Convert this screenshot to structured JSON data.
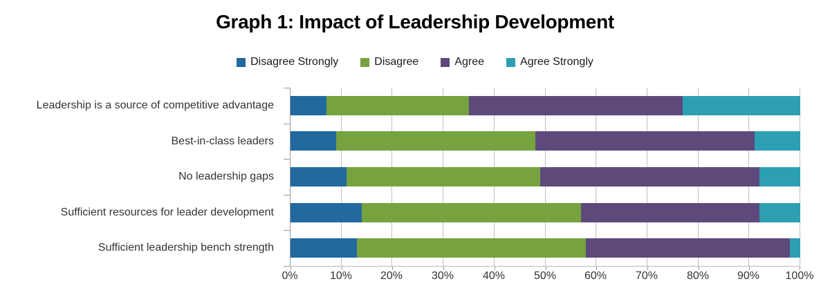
{
  "chart_data": {
    "type": "bar",
    "orientation": "horizontal-stacked",
    "title": "Graph 1: Impact of Leadership Development",
    "categories": [
      "Leadership is a source of competitive advantage",
      "Best-in-class leaders",
      "No leadership gaps",
      "Sufficient resources for leader development",
      "Sufficient leadership bench strength"
    ],
    "series": [
      {
        "name": "Disagree Strongly",
        "color": "#21699E",
        "values": [
          7,
          9,
          11,
          14,
          13
        ]
      },
      {
        "name": "Disagree",
        "color": "#76A240",
        "values": [
          28,
          39,
          38,
          43,
          45
        ]
      },
      {
        "name": "Agree",
        "color": "#5D4A7B",
        "values": [
          42,
          43,
          43,
          35,
          40
        ]
      },
      {
        "name": "Agree Strongly",
        "color": "#2CA0B2",
        "values": [
          23,
          9,
          8,
          8,
          2
        ]
      }
    ],
    "x_axis": {
      "min": 0,
      "max": 100,
      "tick_labels": [
        "0%",
        "10%",
        "20%",
        "30%",
        "40%",
        "50%",
        "60%",
        "70%",
        "80%",
        "90%",
        "100%"
      ]
    },
    "legend_position": "top",
    "grid": true,
    "style_colors": {
      "gridline": "#bfbfbf",
      "axis": "#9b9b9b",
      "tick_text": "#333333",
      "title_text": "#000000"
    }
  }
}
